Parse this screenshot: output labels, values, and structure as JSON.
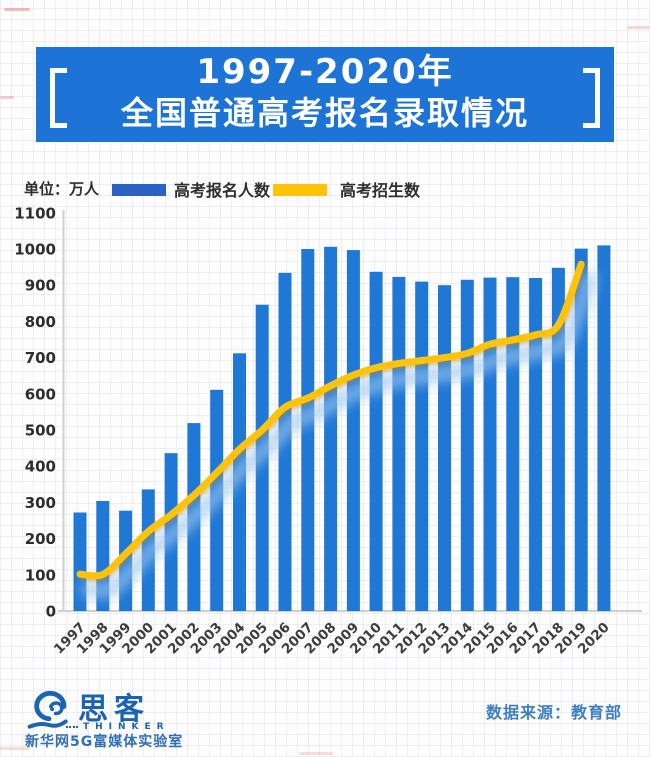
{
  "banner": {
    "title_line1": "1997-2020年",
    "title_line2": "全国普通高考报名录取情况"
  },
  "legend": {
    "unit_label": "单位：万人",
    "series1_label": "高考报名人数",
    "series2_label": "高考招生数"
  },
  "colors": {
    "banner_blue": "#1e74d6",
    "bar_blue": "#1f78d6",
    "legend_bar_blue": "#2b63c4",
    "line_yellow": "#fcc30a",
    "axis_gray": "#cfcfcf",
    "tick_text": "#2d2d2d",
    "footer_logo_blue": "#1b63b5",
    "source_text_blue": "#3f7fc1"
  },
  "chart_data": {
    "type": "bar+line",
    "title": "1997-2020年全国普通高考报名录取情况",
    "unit": "万人",
    "ylim": [
      0,
      1100
    ],
    "ytick_step": 100,
    "yticks": [
      0,
      100,
      200,
      300,
      400,
      500,
      600,
      700,
      800,
      900,
      1000,
      1100
    ],
    "grid": false,
    "legend_position": "top",
    "categories": [
      "1997",
      "1998",
      "1999",
      "2000",
      "2001",
      "2002",
      "2003",
      "2004",
      "2005",
      "2006",
      "2007",
      "2008",
      "2009",
      "2010",
      "2011",
      "2012",
      "2013",
      "2014",
      "2015",
      "2016",
      "2017",
      "2018",
      "2019",
      "2020"
    ],
    "series": [
      {
        "name": "高考报名人数",
        "type": "bar",
        "color": "#1f78d6",
        "values": [
          272,
          304,
          277,
          336,
          436,
          519,
          611,
          712,
          846,
          934,
          1000,
          1006,
          997,
          937,
          923,
          910,
          900,
          915,
          921,
          922,
          920,
          948,
          1001,
          1010
        ]
      },
      {
        "name": "高考招生数",
        "type": "line",
        "color": "#fcc30a",
        "last_year_shown": "2019",
        "values": [
          102,
          101,
          158,
          220,
          266,
          320,
          382,
          447,
          500,
          563,
          588,
          622,
          652,
          672,
          684,
          692,
          700,
          712,
          737,
          749,
          763,
          790,
          958
        ]
      }
    ]
  },
  "footer": {
    "logo_cn": "思客",
    "logo_en": "THINKER",
    "lab_name": "新华网5G富媒体实验室",
    "source": "数据来源：教育部"
  }
}
